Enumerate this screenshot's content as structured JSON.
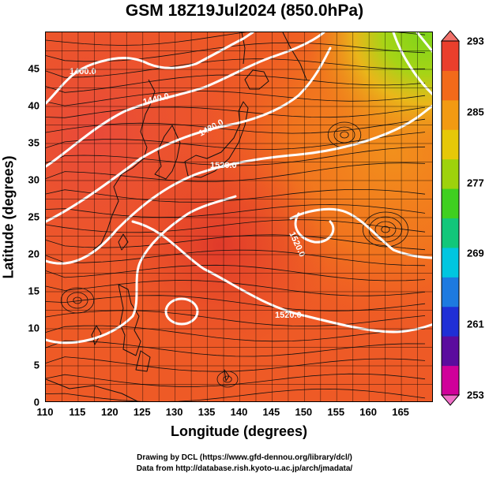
{
  "title": "GSM 18Z19Jul2024 (850.0hPa)",
  "xlabel": "Longitude (degrees)",
  "ylabel": "Latitude  (degrees)",
  "x_ticks": [
    "110",
    "115",
    "120",
    "125",
    "130",
    "135",
    "140",
    "145",
    "150",
    "155",
    "160",
    "165"
  ],
  "y_ticks": [
    "0",
    "5",
    "10",
    "15",
    "20",
    "25",
    "30",
    "35",
    "40",
    "45"
  ],
  "colorbar": {
    "ticks": [
      "293",
      "285",
      "277",
      "269",
      "261",
      "253"
    ],
    "colors": [
      "#d0009a",
      "#5b0c9e",
      "#1f2fd6",
      "#1d7ae0",
      "#00c6e0",
      "#12c77a",
      "#3fd020",
      "#9ed20c",
      "#e6c808",
      "#f29a12",
      "#f26a1a",
      "#ea3f2c"
    ]
  },
  "contour_labels": [
    "1400.0",
    "1440.0",
    "1480.0",
    "1520.0",
    "1520.0",
    "1520.0"
  ],
  "credits": {
    "line1": "Drawing by DCL (https://www.gfd-dennou.org/library/dcl/)",
    "line2": "Data from http://database.rish.kyoto-u.ac.jp/arch/jmadata/"
  },
  "chart_data": {
    "type": "heatmap",
    "title": "GSM 18Z19Jul2024 (850.0hPa)",
    "xlabel": "Longitude (degrees)",
    "ylabel": "Latitude  (degrees)",
    "xlim": [
      110,
      170
    ],
    "ylim": [
      0,
      50
    ],
    "colorbar_range": [
      253,
      293
    ],
    "colorbar_ticks": [
      253,
      261,
      269,
      277,
      285,
      293
    ],
    "contour_levels": [
      1400,
      1440,
      1480,
      1520
    ],
    "grid": true,
    "overlays": [
      "temperature shading",
      "geopotential height contours (white)",
      "wind streamlines (black)",
      "coastlines"
    ]
  }
}
